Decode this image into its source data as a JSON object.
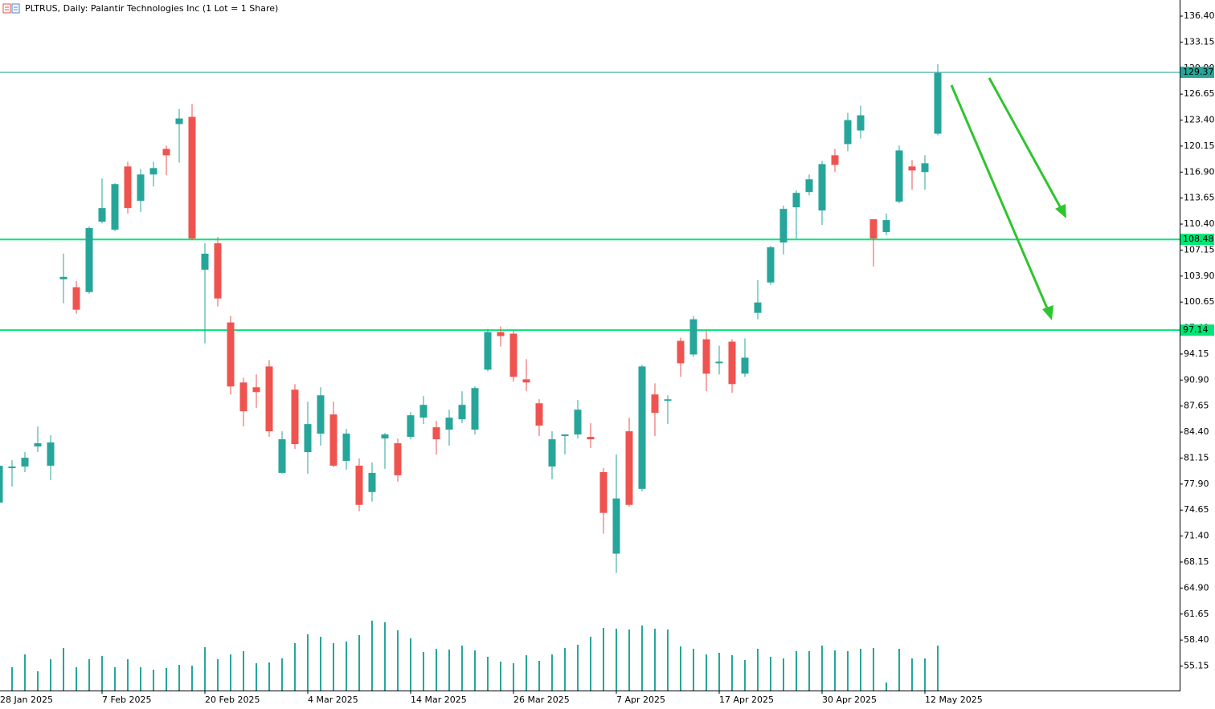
{
  "chart_data": {
    "type": "candlestick",
    "title": "PLTRUS, Daily:  Palantir Technologies Inc (1 Lot = 1 Share)",
    "categories": [
      "28 Jan 2025",
      null,
      null,
      null,
      null,
      null,
      null,
      null,
      "7 Feb 2025",
      null,
      null,
      null,
      null,
      null,
      null,
      null,
      "20 Feb 2025",
      null,
      null,
      null,
      null,
      null,
      null,
      null,
      "4 Mar 2025",
      null,
      null,
      null,
      null,
      null,
      null,
      null,
      "14 Mar 2025",
      null,
      null,
      null,
      null,
      null,
      null,
      null,
      "26 Mar 2025",
      null,
      null,
      null,
      null,
      null,
      null,
      null,
      "7 Apr 2025",
      null,
      null,
      null,
      null,
      null,
      null,
      null,
      "17 Apr 2025",
      null,
      null,
      null,
      null,
      null,
      null,
      null,
      "30 Apr 2025",
      null,
      null,
      null,
      null,
      null,
      null,
      null,
      "12 May 2025",
      null
    ],
    "open": [
      75.58,
      79.89,
      80.09,
      82.6,
      80.19,
      103.5,
      102.5,
      101.9,
      110.7,
      109.7,
      117.6,
      113.3,
      116.6,
      119.8,
      122.9,
      123.8,
      104.7,
      108.0,
      98.1,
      90.6,
      90.0,
      92.6,
      79.3,
      89.7,
      81.9,
      84.2,
      86.6,
      80.8,
      80.2,
      76.9,
      83.6,
      83.0,
      83.8,
      86.2,
      85.0,
      84.7,
      86.0,
      84.7,
      92.2,
      96.9,
      96.7,
      91.0,
      88.0,
      80.1,
      83.9,
      84.1,
      83.8,
      79.4,
      69.2,
      84.5,
      77.3,
      89.1,
      88.3,
      95.8,
      94.1,
      96.0,
      93.0,
      95.7,
      91.7,
      99.3,
      103.1,
      108.1,
      112.5,
      114.4,
      112.1,
      119.0,
      120.4,
      122.1,
      111.0,
      109.4,
      113.2,
      117.6,
      116.9,
      121.7
    ],
    "high": [
      80.4,
      80.89,
      81.9,
      85.1,
      84.0,
      106.7,
      103.3,
      110.1,
      116.1,
      115.5,
      118.2,
      117.3,
      118.2,
      120.2,
      124.8,
      125.4,
      108.0,
      108.8,
      98.9,
      91.2,
      91.6,
      93.4,
      84.5,
      90.4,
      88.2,
      90.0,
      88.2,
      84.8,
      81.1,
      80.6,
      84.3,
      83.6,
      86.9,
      88.9,
      85.8,
      87.2,
      89.5,
      90.1,
      97.3,
      97.6,
      97.1,
      93.5,
      88.5,
      84.5,
      84.1,
      88.4,
      85.5,
      79.9,
      81.6,
      86.2,
      92.8,
      90.5,
      89.0,
      96.2,
      98.9,
      97.1,
      95.2,
      96.0,
      96.1,
      103.4,
      107.7,
      112.7,
      114.6,
      116.6,
      118.3,
      119.8,
      124.3,
      125.2,
      111.0,
      111.7,
      120.2,
      118.4,
      119.0,
      130.4
    ],
    "low": [
      75.2,
      77.58,
      79.39,
      81.9,
      78.4,
      100.5,
      99.2,
      101.7,
      110.5,
      109.5,
      111.7,
      111.9,
      115.1,
      116.5,
      118.1,
      108.4,
      95.5,
      100.1,
      89.1,
      85.1,
      87.4,
      83.8,
      79.2,
      82.3,
      79.2,
      82.7,
      80.0,
      79.7,
      74.5,
      75.7,
      79.8,
      78.2,
      83.5,
      85.4,
      81.6,
      82.7,
      85.5,
      84.1,
      92.0,
      95.1,
      90.7,
      89.5,
      83.9,
      78.5,
      81.6,
      83.6,
      82.4,
      71.7,
      66.8,
      75.1,
      77.0,
      83.9,
      85.4,
      91.3,
      93.8,
      89.5,
      91.6,
      89.3,
      91.3,
      98.5,
      102.8,
      106.6,
      108.6,
      114.0,
      110.3,
      116.9,
      119.5,
      121.1,
      105.1,
      109.0,
      113.0,
      114.7,
      114.7,
      121.5
    ],
    "close": [
      80.19,
      80.09,
      81.19,
      83.0,
      83.1,
      103.8,
      99.7,
      109.9,
      112.4,
      115.4,
      112.4,
      116.6,
      117.4,
      119.0,
      123.6,
      108.6,
      106.7,
      101.1,
      90.1,
      87.0,
      89.4,
      84.5,
      83.5,
      82.9,
      85.4,
      89.0,
      80.2,
      84.2,
      75.3,
      79.3,
      84.1,
      79.0,
      86.5,
      87.8,
      83.5,
      86.2,
      87.8,
      89.9,
      96.9,
      96.4,
      91.3,
      90.6,
      85.2,
      83.5,
      84.1,
      87.2,
      83.5,
      74.3,
      76.1,
      75.3,
      92.6,
      86.8,
      88.5,
      93.0,
      98.5,
      91.7,
      93.2,
      90.4,
      93.7,
      100.6,
      107.5,
      112.3,
      114.3,
      116.0,
      117.9,
      117.8,
      123.4,
      124.0,
      108.6,
      110.9,
      119.6,
      117.1,
      118.0,
      129.3
    ],
    "volume": [
      null,
      29,
      45,
      24,
      39,
      53,
      29,
      39,
      43,
      29,
      39,
      29,
      26,
      28,
      32,
      31,
      54,
      39,
      45,
      49,
      34,
      35,
      40,
      59,
      70,
      67,
      59,
      61,
      69,
      87,
      85,
      75,
      65,
      48,
      52,
      51,
      56,
      50,
      42,
      36,
      34,
      44,
      37,
      45,
      53,
      57,
      67,
      78,
      77,
      76,
      81,
      77,
      76,
      55,
      52,
      45,
      47,
      44,
      38,
      52,
      42,
      40,
      49,
      49,
      56,
      50,
      49,
      52,
      53,
      10,
      52,
      40,
      40,
      56
    ],
    "volume_lim": [
      0,
      100
    ],
    "up_color": "#26a69a",
    "down_color": "#ef5350",
    "volume_color": "#26a69a",
    "ylim": [
      52.09,
      138.41
    ],
    "yticks": [
      {
        "value": 136.4,
        "label": "136.40"
      },
      {
        "value": 133.15,
        "label": "133.15"
      },
      {
        "value": 129.9,
        "label": "129.90"
      },
      {
        "value": 126.65,
        "label": "126.65"
      },
      {
        "value": 123.4,
        "label": "123.40"
      },
      {
        "value": 120.15,
        "label": "120.15"
      },
      {
        "value": 116.9,
        "label": "116.90"
      },
      {
        "value": 113.65,
        "label": "113.65"
      },
      {
        "value": 110.4,
        "label": "110.40"
      },
      {
        "value": 107.15,
        "label": "107.15"
      },
      {
        "value": 103.9,
        "label": "103.90"
      },
      {
        "value": 100.65,
        "label": "100.65"
      },
      {
        "value": 97.4,
        "label": "97.40"
      },
      {
        "value": 94.15,
        "label": "94.15"
      },
      {
        "value": 90.9,
        "label": "90.90"
      },
      {
        "value": 87.65,
        "label": "87.65"
      },
      {
        "value": 84.4,
        "label": "84.40"
      },
      {
        "value": 81.15,
        "label": "81.15"
      },
      {
        "value": 77.9,
        "label": "77.90"
      },
      {
        "value": 74.65,
        "label": "74.65"
      },
      {
        "value": 71.4,
        "label": "71.40"
      },
      {
        "value": 68.15,
        "label": "68.15"
      },
      {
        "value": 64.9,
        "label": "64.90"
      },
      {
        "value": 61.65,
        "label": "61.65"
      },
      {
        "value": 58.4,
        "label": "58.40"
      },
      {
        "value": 55.15,
        "label": "55.15"
      }
    ],
    "levels": [
      {
        "value": 129.37,
        "color": "#26a69a"
      },
      {
        "value": 108.48,
        "color": "#00e676"
      },
      {
        "value": 97.14,
        "color": "#00e676"
      }
    ]
  }
}
